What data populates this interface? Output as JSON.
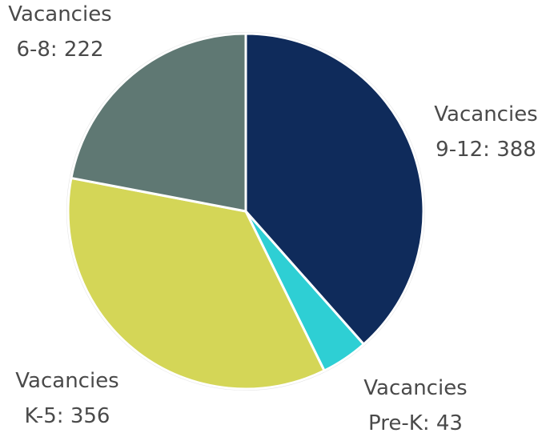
{
  "chart_data": {
    "type": "pie",
    "values": [
      388,
      43,
      356,
      222
    ],
    "value_labels": [
      "Vacancies 9-12: 388",
      "Vacancies Pre-K: 43",
      "Vacancies K-5: 356",
      "Vacancies 6-8: 222"
    ],
    "colors": [
      "#0f2b5b",
      "#2ecfd4",
      "#d4d657",
      "#5f7873"
    ]
  }
}
